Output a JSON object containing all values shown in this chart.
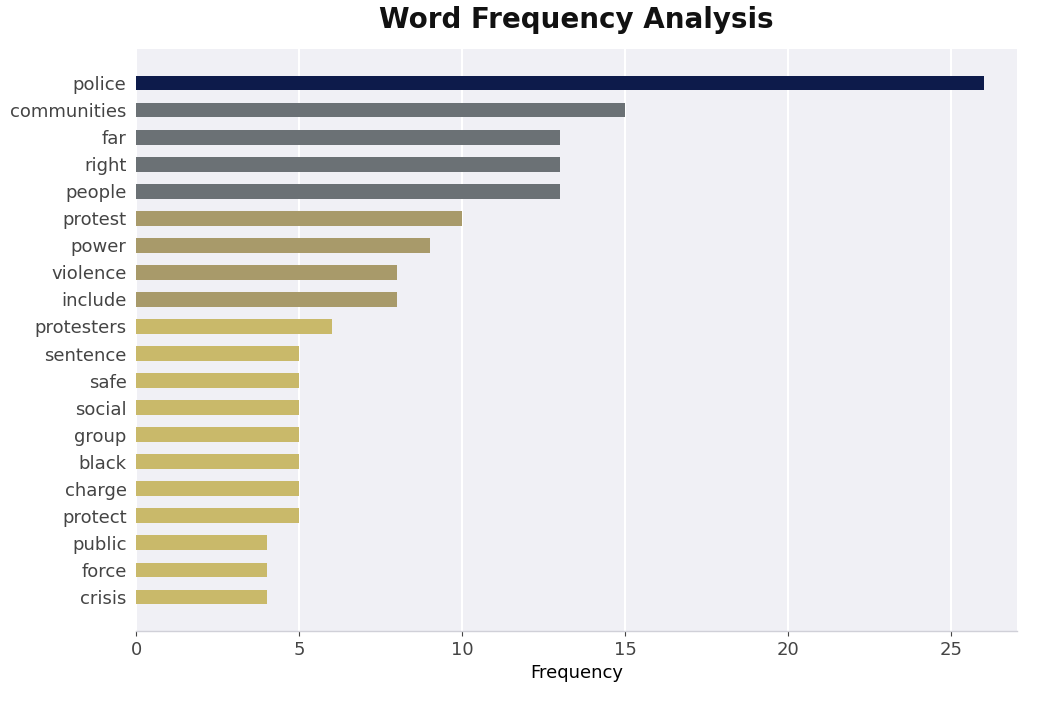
{
  "title": "Word Frequency Analysis",
  "xlabel": "Frequency",
  "categories": [
    "police",
    "communities",
    "far",
    "right",
    "people",
    "protest",
    "power",
    "violence",
    "include",
    "protesters",
    "sentence",
    "safe",
    "social",
    "group",
    "black",
    "charge",
    "protect",
    "public",
    "force",
    "crisis"
  ],
  "values": [
    26,
    15,
    13,
    13,
    13,
    10,
    9,
    8,
    8,
    6,
    5,
    5,
    5,
    5,
    5,
    5,
    5,
    4,
    4,
    4
  ],
  "bar_colors": [
    "#0d1b4b",
    "#6b7175",
    "#6b7175",
    "#6b7175",
    "#6b7175",
    "#a89a6a",
    "#a89a6a",
    "#a89a6a",
    "#a89a6a",
    "#c9b96a",
    "#c9b96a",
    "#c9b96a",
    "#c9b96a",
    "#c9b96a",
    "#c9b96a",
    "#c9b96a",
    "#c9b96a",
    "#c9b96a",
    "#c9b96a",
    "#c9b96a"
  ],
  "figure_bg": "#ffffff",
  "axes_bg": "#f0f0f5",
  "grid_color": "#ffffff",
  "spine_color": "#d0d0d8",
  "xlim": [
    0,
    27
  ],
  "xticks": [
    0,
    5,
    10,
    15,
    20,
    25
  ],
  "title_fontsize": 20,
  "label_fontsize": 13,
  "tick_fontsize": 13,
  "bar_height": 0.55
}
